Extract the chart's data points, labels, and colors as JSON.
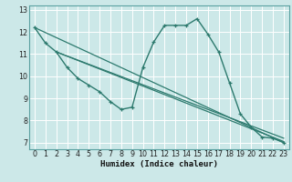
{
  "title": "",
  "xlabel": "Humidex (Indice chaleur)",
  "bg_color": "#cce8e8",
  "grid_color": "#ffffff",
  "line_color": "#2d7a6e",
  "xlim": [
    -0.5,
    23.5
  ],
  "ylim": [
    6.7,
    13.2
  ],
  "yticks": [
    7,
    8,
    9,
    10,
    11,
    12,
    13
  ],
  "xticks": [
    0,
    1,
    2,
    3,
    4,
    5,
    6,
    7,
    8,
    9,
    10,
    11,
    12,
    13,
    14,
    15,
    16,
    17,
    18,
    19,
    20,
    21,
    22,
    23
  ],
  "lines": [
    {
      "x": [
        0,
        1,
        2,
        3,
        4,
        5,
        6,
        7,
        8,
        9,
        10,
        11,
        12,
        13,
        14,
        15,
        16,
        17,
        18,
        19,
        20,
        21,
        22,
        23
      ],
      "y": [
        12.2,
        11.5,
        11.1,
        10.4,
        9.9,
        9.6,
        9.3,
        8.85,
        8.5,
        8.6,
        10.4,
        11.55,
        12.3,
        12.3,
        12.3,
        12.6,
        11.9,
        11.1,
        9.7,
        8.3,
        7.7,
        7.25,
        7.2,
        7.0
      ],
      "lw": 1.0,
      "marker": true
    },
    {
      "x": [
        0,
        23
      ],
      "y": [
        12.2,
        7.0
      ],
      "lw": 0.9,
      "marker": false
    },
    {
      "x": [
        2,
        23
      ],
      "y": [
        11.1,
        7.05
      ],
      "lw": 0.9,
      "marker": false
    },
    {
      "x": [
        2,
        23
      ],
      "y": [
        11.1,
        7.2
      ],
      "lw": 0.9,
      "marker": false
    }
  ],
  "xlabel_fontsize": 6.5,
  "tick_fontsize": 5.8,
  "xlabel_bold": true
}
